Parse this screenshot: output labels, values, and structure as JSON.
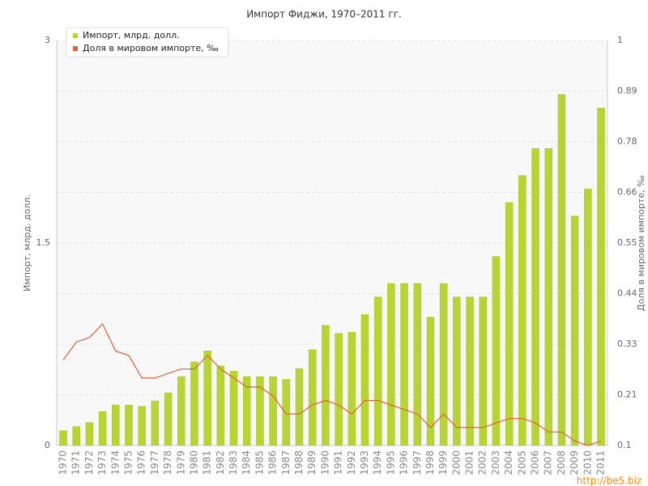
{
  "chart_data": {
    "type": "bar-line",
    "title": "Импорт Фиджи, 1970–2011 гг.",
    "ylabel": "Импорт, млрд. долл.",
    "y2label": "Доля в мировом импорте, ‰",
    "watermark": "http://be5.biz",
    "legend": "top-left",
    "grid": true,
    "categories": [
      "1970",
      "1971",
      "1972",
      "1973",
      "1974",
      "1975",
      "1976",
      "1977",
      "1978",
      "1979",
      "1980",
      "1981",
      "1982",
      "1983",
      "1984",
      "1985",
      "1986",
      "1987",
      "1988",
      "1989",
      "1990",
      "1991",
      "1992",
      "1993",
      "1994",
      "1995",
      "1996",
      "1997",
      "1998",
      "1999",
      "2000",
      "2001",
      "2002",
      "2003",
      "2004",
      "2005",
      "2006",
      "2007",
      "2008",
      "2009",
      "2010",
      "2011"
    ],
    "ylim": [
      0,
      3
    ],
    "yticks": [
      0,
      1.5,
      3
    ],
    "y2lim": [
      0.1,
      1
    ],
    "y2ticks": [
      0.1,
      {
        "value": 0.2125,
        "label": "0.21"
      },
      {
        "value": 0.325,
        "label": "0.33"
      },
      {
        "value": 0.4375,
        "label": "0.44"
      },
      {
        "value": 0.55,
        "label": "0.55"
      },
      {
        "value": 0.6625,
        "label": "0.66"
      },
      {
        "value": 0.775,
        "label": "0.78"
      },
      {
        "value": 0.8875,
        "label": "0.89"
      },
      1
    ],
    "series": [
      {
        "name": "Импорт, млрд. долл.",
        "type": "bar",
        "color": "#b8d432",
        "values": [
          0.11,
          0.14,
          0.17,
          0.25,
          0.3,
          0.3,
          0.29,
          0.33,
          0.39,
          0.51,
          0.62,
          0.7,
          0.59,
          0.55,
          0.51,
          0.51,
          0.51,
          0.49,
          0.57,
          0.71,
          0.89,
          0.83,
          0.84,
          0.97,
          1.1,
          1.2,
          1.2,
          1.2,
          0.95,
          1.2,
          1.1,
          1.1,
          1.1,
          1.4,
          1.8,
          2.0,
          2.2,
          2.2,
          2.6,
          1.7,
          1.9,
          2.5
        ]
      },
      {
        "name": "Доля в мировом импорте, ‰",
        "type": "line",
        "axis": "y2",
        "color": "#e0603a",
        "values": [
          0.29,
          0.33,
          0.34,
          0.37,
          0.31,
          0.3,
          0.25,
          0.25,
          0.26,
          0.27,
          0.27,
          0.3,
          0.27,
          0.25,
          0.23,
          0.23,
          0.21,
          0.17,
          0.17,
          0.19,
          0.2,
          0.19,
          0.17,
          0.2,
          0.2,
          0.19,
          0.18,
          0.17,
          0.14,
          0.17,
          0.14,
          0.14,
          0.14,
          0.15,
          0.16,
          0.16,
          0.15,
          0.13,
          0.13,
          0.11,
          0.1,
          0.11
        ]
      }
    ]
  }
}
